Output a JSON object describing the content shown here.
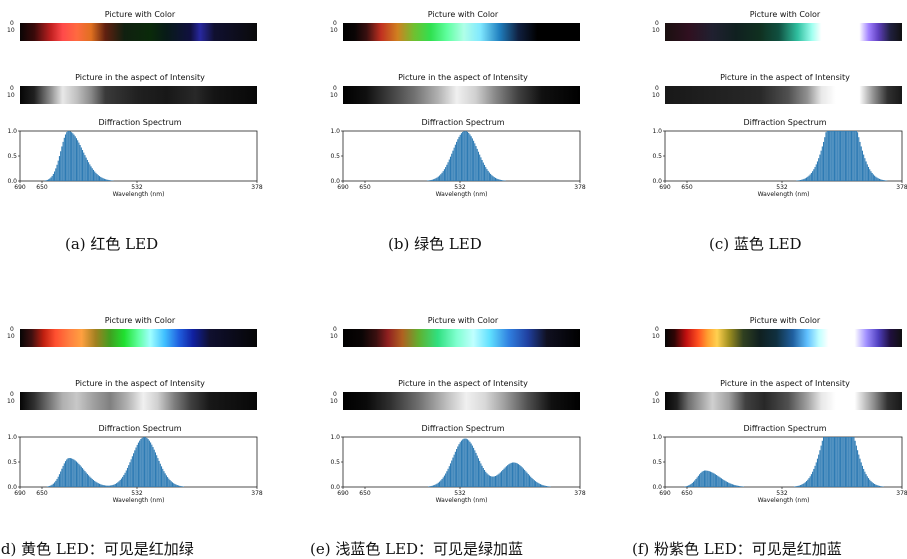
{
  "labels": {
    "color_title": "Picture with Color",
    "intensity_title": "Picture in the aspect of Intensity",
    "spectrum_title": "Diffraction Spectrum",
    "xlabel": "Wavelength (nm)",
    "strip_ticks": [
      "0",
      "10"
    ]
  },
  "chart_data": [
    {
      "type": "bar",
      "title": "Diffraction Spectrum",
      "xlabel": "Wavelength (nm)",
      "x_ticks": [
        "690",
        "650",
        "532",
        "378"
      ],
      "y_ticks": [
        "0.0",
        "0.5",
        "1.0"
      ],
      "ylim": [
        0,
        1.0
      ],
      "caption": "(a) 红色 LED",
      "peaks": [
        {
          "wavelength_nm": 627,
          "height": 1.0
        }
      ]
    },
    {
      "type": "bar",
      "title": "Diffraction Spectrum",
      "xlabel": "Wavelength (nm)",
      "x_ticks": [
        "690",
        "650",
        "532",
        "378"
      ],
      "y_ticks": [
        "0.0",
        "0.5",
        "1.0"
      ],
      "ylim": [
        0,
        1.0
      ],
      "caption": "(b) 绿色 LED",
      "peaks": [
        {
          "wavelength_nm": 530,
          "height": 1.0
        }
      ]
    },
    {
      "type": "bar",
      "title": "Diffraction Spectrum",
      "xlabel": "Wavelength (nm)",
      "x_ticks": [
        "690",
        "650",
        "532",
        "378"
      ],
      "y_ticks": [
        "0.0",
        "0.5",
        "1.0"
      ],
      "ylim": [
        0,
        1.0
      ],
      "caption": "(c) 蓝色 LED",
      "peaks": [
        {
          "wavelength_nm": 458,
          "height": 1.0,
          "saturated": true
        }
      ]
    },
    {
      "type": "bar",
      "title": "Diffraction Spectrum",
      "xlabel": "Wavelength (nm)",
      "x_ticks": [
        "690",
        "650",
        "532",
        "378"
      ],
      "y_ticks": [
        "0.0",
        "0.5",
        "1.0"
      ],
      "ylim": [
        0,
        1.0
      ],
      "caption": "(d) 黄色 LED：可见是红加绿",
      "peaks": [
        {
          "wavelength_nm": 626,
          "height": 0.58
        },
        {
          "wavelength_nm": 527,
          "height": 1.0
        }
      ]
    },
    {
      "type": "bar",
      "title": "Diffraction Spectrum",
      "xlabel": "Wavelength (nm)",
      "x_ticks": [
        "690",
        "650",
        "532",
        "378"
      ],
      "y_ticks": [
        "0.0",
        "0.5",
        "1.0"
      ],
      "ylim": [
        0,
        1.0
      ],
      "caption": "(e) 浅蓝色 LED：可见是绿加蓝",
      "peaks": [
        {
          "wavelength_nm": 530,
          "height": 0.97
        },
        {
          "wavelength_nm": 466,
          "height": 0.49
        }
      ]
    },
    {
      "type": "bar",
      "title": "Diffraction Spectrum",
      "xlabel": "Wavelength (nm)",
      "x_ticks": [
        "690",
        "650",
        "532",
        "378"
      ],
      "y_ticks": [
        "0.0",
        "0.5",
        "1.0"
      ],
      "ylim": [
        0,
        1.0
      ],
      "caption": "(f) 粉紫色 LED：可见是红加蓝",
      "peaks": [
        {
          "wavelength_nm": 638,
          "height": 0.33
        },
        {
          "wavelength_nm": 462,
          "height": 1.0,
          "saturated": true
        }
      ]
    }
  ],
  "strips": [
    {
      "color": "linear-gradient(90deg,#0a0505 0%,#3a0a0a 6%,#c02020 13%,#ff4a4a 18%,#ff6a40 24%,#e07020 30%,#602010 36%,#102010 44%,#0a2a0a 55%,#081a18 62%,#101040 72%,#2828a0 76%,#101030 82%,#0a0a0a 100%)",
      "gray": "linear-gradient(90deg,#050505 0%,#202020 6%,#909090 13%,#e8e8e8 18%,#c0c0c0 24%,#8a8a8a 30%,#3a3a3a 36%,#202020 50%,#181818 62%,#282828 74%,#141414 82%,#080808 100%)"
    },
    {
      "color": "linear-gradient(90deg,#000000 0%,#0a0505 5%,#3a1010 10%,#c03020 16%,#d08020 23%,#70c030 30%,#30e050 37%,#60ffa0 44%,#b0ffe8 51%,#80e8ff 58%,#2080c0 66%,#102040 74%,#000000 82%,#000000 100%)",
      "gray": "linear-gradient(90deg,#000000 0%,#101010 10%,#404040 20%,#707070 30%,#b0b0b0 40%,#f0f0f0 48%,#d0d0d0 56%,#8a8a8a 64%,#404040 74%,#101010 84%,#000000 100%)"
    },
    {
      "color": "linear-gradient(90deg,#1a1010 0%,#301020 10%,#202030 20%,#102020 30%,#103020 40%,#105040 48%,#30c0a0 56%,#a0fff0 62%,#ffffff 66%,#ffffff 82%,#a080ff 86%,#6040c0 90%,#202040 95%,#101010 100%)",
      "gray": "linear-gradient(90deg,#181818 0%,#202020 20%,#282828 40%,#505050 52%,#909090 60%,#e8e8e8 66%,#ffffff 72%,#ffffff 82%,#909090 88%,#303030 94%,#181818 100%)"
    },
    {
      "color": "linear-gradient(90deg,#050505 0%,#401010 5%,#c02010 10%,#ff5030 15%,#ff8040 21%,#ffa040 26%,#a08020 32%,#40a020 38%,#20e030 44%,#60ffa0 50%,#a0ffff 55%,#40c0ff 61%,#2060e0 67%,#1020a0 73%,#101030 80%,#050505 100%)",
      "gray": "linear-gradient(90deg,#050505 0%,#303030 6%,#707070 12%,#b0b0b0 18%,#c8c8c8 24%,#a0a0a0 31%,#808080 38%,#b0b0b0 45%,#f0f0f0 52%,#d0d0d0 58%,#808080 65%,#404040 72%,#181818 80%,#080808 100%)"
    },
    {
      "color": "linear-gradient(90deg,#000000 0%,#0a0505 8%,#3a1010 14%,#902020 19%,#b06020 25%,#60b030 32%,#30e080 40%,#80ffd0 48%,#c0ffff 55%,#60e0ff 62%,#3080e0 70%,#2040a0 78%,#101020 86%,#000000 100%)",
      "gray": "linear-gradient(90deg,#000000 0%,#0a0a0a 10%,#303030 20%,#707070 32%,#c0c0c0 44%,#f0f0f0 52%,#d8d8d8 60%,#a0a0a0 68%,#505050 78%,#101010 88%,#000000 100%)"
    },
    {
      "color": "linear-gradient(90deg,#050505 0%,#300505 4%,#c01010 9%,#ff5020 14%,#ffa030 18%,#ffd050 22%,#a09020 27%,#304020 33%,#102020 40%,#103040 47%,#2060a0 54%,#60c0ff 60%,#c0ffff 65%,#ffffff 69%,#ffffff 80%,#a090ff 85%,#5040c0 90%,#201040 95%,#101010 100%)",
      "gray": "linear-gradient(90deg,#050505 0%,#202020 5%,#707070 10%,#a0a0a0 15%,#d0d0d0 20%,#a0a0a0 27%,#404040 34%,#282828 42%,#505050 52%,#a0a0a0 60%,#e8e8e8 66%,#ffffff 72%,#ffffff 80%,#909090 88%,#303030 94%,#181818 100%)"
    }
  ]
}
